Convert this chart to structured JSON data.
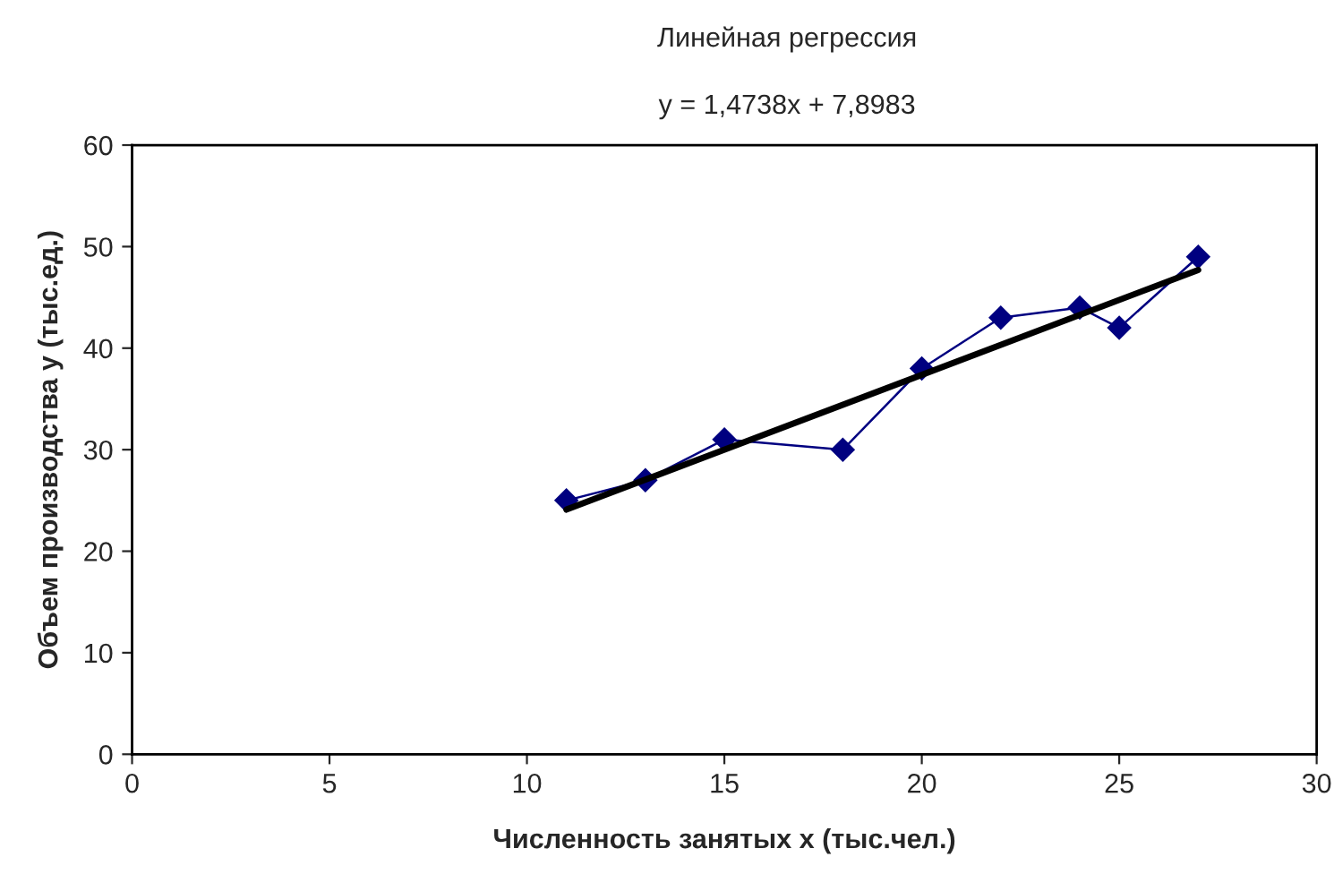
{
  "chart_data": {
    "type": "line",
    "title": "Линейная регрессия",
    "subtitle": "y = 1,4738x + 7,8983",
    "xlabel": "Численность занятых x (тыс.чел.)",
    "ylabel": "Объем производства y (тыс.ед.)",
    "series": [
      {
        "color": "#000080",
        "marker": "diamond",
        "x": [
          11,
          13,
          15,
          18,
          20,
          22,
          24,
          25,
          27
        ],
        "values": [
          25,
          27,
          31,
          30,
          38,
          43,
          44,
          42,
          49
        ]
      },
      {
        "color": "#000000",
        "marker": "none",
        "x": [
          11,
          27
        ],
        "values": [
          24.1,
          47.7
        ]
      }
    ],
    "xlim": [
      0,
      30
    ],
    "xticks": [
      0,
      5,
      10,
      15,
      20,
      25,
      30
    ],
    "ylim": [
      0,
      60
    ],
    "yticks": [
      0,
      10,
      20,
      30,
      40,
      50,
      60
    ],
    "grid": false,
    "legend": false
  }
}
